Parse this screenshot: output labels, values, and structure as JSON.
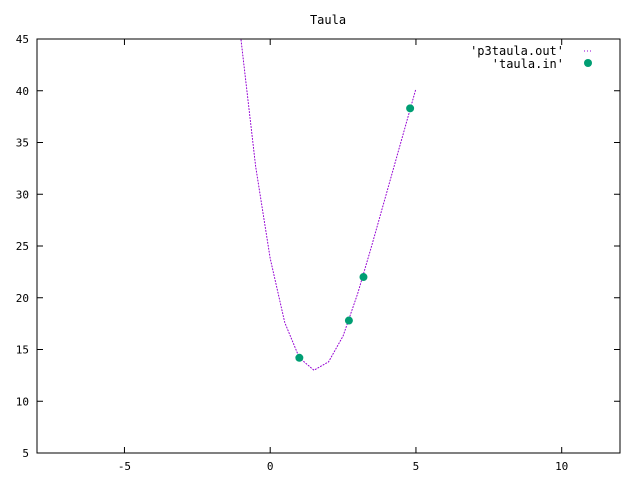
{
  "chart_data": {
    "type": "line",
    "title": "Taula",
    "xlim": [
      -8,
      12
    ],
    "ylim": [
      5,
      45
    ],
    "x_ticks": [
      -5,
      0,
      5,
      10
    ],
    "y_ticks": [
      5,
      10,
      15,
      20,
      25,
      30,
      35,
      40,
      45
    ],
    "grid": false,
    "legend_position": "top-right",
    "series": [
      {
        "name": "'p3taula.out'",
        "style": "dotted-line",
        "color": "#9400d3",
        "x": [
          -1.0,
          -0.5,
          0.0,
          0.5,
          1.0,
          1.5,
          2.0,
          2.5,
          3.0,
          3.5,
          4.0,
          4.5,
          5.0
        ],
        "y": [
          44.9,
          32.7,
          23.8,
          17.6,
          14.2,
          13.0,
          13.8,
          16.3,
          20.4,
          25.2,
          30.2,
          35.2,
          40.2
        ]
      },
      {
        "name": "'taula.in'",
        "style": "points",
        "color": "#009e73",
        "x": [
          1.0,
          2.7,
          3.2,
          4.8
        ],
        "y": [
          14.2,
          17.8,
          22.0,
          38.3
        ]
      }
    ]
  }
}
